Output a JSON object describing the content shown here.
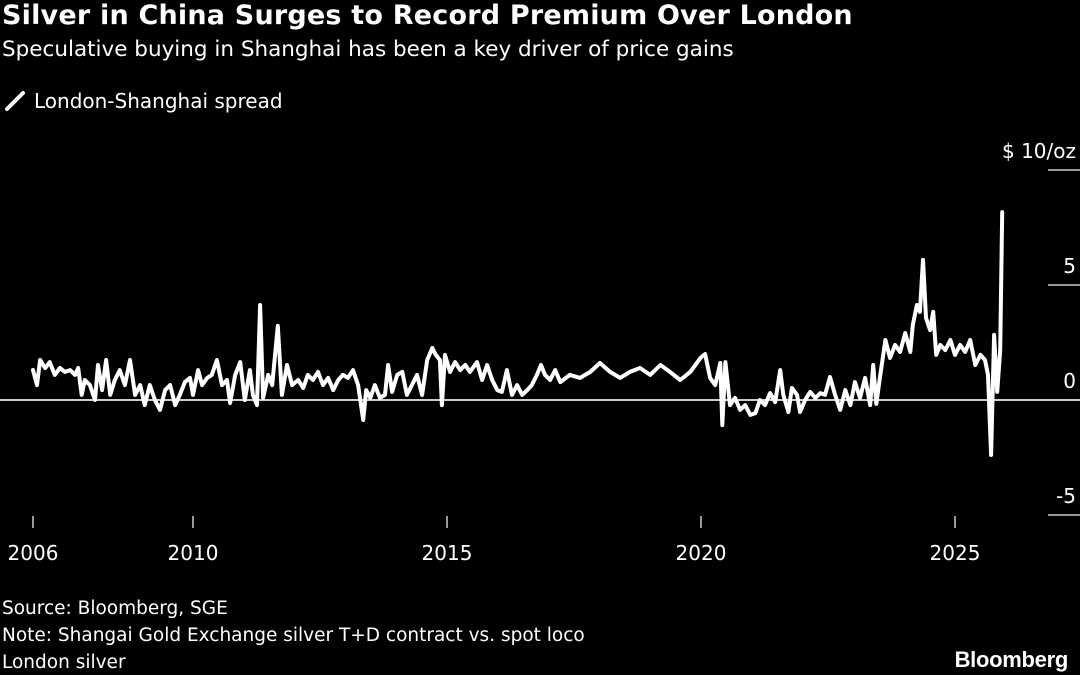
{
  "header": {
    "title": "Silver in China Surges to Record Premium Over London",
    "subtitle": "Speculative buying in Shanghai has been a key driver of price gains"
  },
  "footer": {
    "source": "Source: Bloomberg, SGE",
    "note_line1": "Note: Shangai Gold Exchange silver T+D contract vs. spot loco",
    "note_line2": "London silver",
    "logo": "Bloomberg"
  },
  "colors": {
    "background": "#000000",
    "line": "#ffffff",
    "zero_line": "#cccccc"
  },
  "chart_data": {
    "type": "line",
    "title": "Silver in China Surges to Record Premium Over London",
    "subtitle": "Speculative buying in Shanghai has been a key driver of price gains",
    "legend": {
      "placement": "top-left",
      "entries": [
        "London-Shanghai spread"
      ]
    },
    "ylabel_unit": "$ 10/oz",
    "y_ticks": [
      {
        "value": 10,
        "label": "$ 10/oz"
      },
      {
        "value": 5,
        "label": "5"
      },
      {
        "value": 0,
        "label": "0"
      },
      {
        "value": -5,
        "label": "-5"
      }
    ],
    "x_ticks": [
      {
        "value": 2006.85,
        "label": "2006"
      },
      {
        "value": 2010,
        "label": "2010"
      },
      {
        "value": 2015,
        "label": "2015"
      },
      {
        "value": 2020,
        "label": "2020"
      },
      {
        "value": 2025,
        "label": "2025"
      }
    ],
    "ylim": [
      -5,
      10
    ],
    "grid": false,
    "series": [
      {
        "name": "London-Shanghai spread",
        "x": [
          2006.85,
          2006.93,
          2006.99,
          2007.09,
          2007.18,
          2007.28,
          2007.38,
          2007.48,
          2007.58,
          2007.68,
          2007.74,
          2007.81,
          2007.87,
          2007.97,
          2008.07,
          2008.13,
          2008.21,
          2008.29,
          2008.37,
          2008.46,
          2008.56,
          2008.66,
          2008.76,
          2008.86,
          2008.96,
          2009.05,
          2009.15,
          2009.25,
          2009.35,
          2009.45,
          2009.55,
          2009.65,
          2009.74,
          2009.84,
          2009.94,
          2010.0,
          2010.1,
          2010.18,
          2010.28,
          2010.37,
          2010.47,
          2010.57,
          2010.67,
          2010.73,
          2010.83,
          2010.93,
          2011.02,
          2011.12,
          2011.18,
          2011.26,
          2011.32,
          2011.38,
          2011.48,
          2011.56,
          2011.67,
          2011.75,
          2011.85,
          2011.95,
          2012.07,
          2012.17,
          2012.26,
          2012.36,
          2012.46,
          2012.56,
          2012.66,
          2012.76,
          2012.86,
          2012.95,
          2013.05,
          2013.15,
          2013.25,
          2013.35,
          2013.41,
          2013.49,
          2013.58,
          2013.68,
          2013.78,
          2013.84,
          2013.92,
          2014.02,
          2014.12,
          2014.21,
          2014.31,
          2014.41,
          2014.51,
          2014.61,
          2014.71,
          2014.78,
          2014.86,
          2014.9,
          2014.96,
          2015.06,
          2015.16,
          2015.26,
          2015.36,
          2015.45,
          2015.59,
          2015.69,
          2015.79,
          2015.89,
          2015.99,
          2016.08,
          2016.18,
          2016.28,
          2016.38,
          2016.48,
          2016.58,
          2016.67,
          2016.77,
          2016.85,
          2016.93,
          2017.03,
          2017.13,
          2017.23,
          2017.42,
          2017.62,
          2017.82,
          2018.01,
          2018.21,
          2018.41,
          2018.6,
          2018.8,
          2019.0,
          2019.2,
          2019.39,
          2019.59,
          2019.79,
          2019.99,
          2020.08,
          2020.18,
          2020.28,
          2020.38,
          2020.42,
          2020.48,
          2020.57,
          2020.67,
          2020.77,
          2020.87,
          2020.97,
          2021.07,
          2021.16,
          2021.26,
          2021.36,
          2021.46,
          2021.56,
          2021.62,
          2021.72,
          2021.79,
          2021.89,
          2021.95,
          2022.05,
          2022.15,
          2022.25,
          2022.35,
          2022.44,
          2022.54,
          2022.64,
          2022.74,
          2022.84,
          2022.94,
          2023.03,
          2023.13,
          2023.23,
          2023.33,
          2023.39,
          2023.45,
          2023.53,
          2023.63,
          2023.72,
          2023.82,
          2023.92,
          2024.02,
          2024.12,
          2024.17,
          2024.25,
          2024.31,
          2024.37,
          2024.43,
          2024.51,
          2024.57,
          2024.63,
          2024.71,
          2024.81,
          2024.91,
          2025.0,
          2025.1,
          2025.2,
          2025.3,
          2025.4,
          2025.5,
          2025.59,
          2025.65,
          2025.71,
          2025.77,
          2025.83,
          2025.89,
          2025.93
        ],
        "y": [
          1.3,
          0.65,
          1.74,
          1.39,
          1.65,
          1.09,
          1.39,
          1.22,
          1.3,
          1.09,
          1.39,
          0.22,
          0.87,
          0.65,
          0,
          1.52,
          0.43,
          1.74,
          0.22,
          0.87,
          1.3,
          0.65,
          1.74,
          0.22,
          0.65,
          -0.22,
          0.65,
          0,
          -0.43,
          0.43,
          0.65,
          -0.22,
          0.22,
          0.78,
          0.96,
          0.22,
          1.3,
          0.65,
          0.96,
          1.09,
          1.74,
          0.65,
          0.87,
          -0.13,
          1.09,
          1.65,
          0,
          1.3,
          0.22,
          -0.22,
          4.13,
          0.09,
          1.09,
          0.65,
          3.22,
          0.22,
          1.52,
          0.65,
          0.87,
          0.52,
          1.09,
          0.87,
          1.22,
          0.65,
          0.96,
          0.43,
          0.87,
          1.09,
          0.96,
          1.3,
          0.65,
          -0.87,
          0.43,
          0.09,
          0.65,
          0.09,
          0.22,
          1.52,
          0.35,
          1.09,
          1.22,
          0.22,
          0.65,
          1.09,
          0.22,
          1.74,
          2.26,
          1.96,
          1.74,
          -0.22,
          1.96,
          1.22,
          1.65,
          1.3,
          1.52,
          1.22,
          1.65,
          0.87,
          1.52,
          0.87,
          0.43,
          0.35,
          1.3,
          0.22,
          0.65,
          0.22,
          0.43,
          0.65,
          1.09,
          1.52,
          1.09,
          0.87,
          1.3,
          0.78,
          1.09,
          0.96,
          1.22,
          1.61,
          1.22,
          0.96,
          1.22,
          1.39,
          1.09,
          1.52,
          1.22,
          0.87,
          1.22,
          1.83,
          2.0,
          0.96,
          0.65,
          1.61,
          -1.09,
          1.65,
          -0.22,
          0.09,
          -0.43,
          -0.22,
          -0.65,
          -0.57,
          0,
          -0.22,
          0.3,
          -0.09,
          1.3,
          0.22,
          -0.52,
          0.52,
          0.22,
          -0.52,
          0,
          0.35,
          0.09,
          0.3,
          0.22,
          1.0,
          0.22,
          -0.43,
          0.43,
          -0.22,
          0.78,
          0.09,
          0.96,
          -0.22,
          1.52,
          -0.17,
          1.09,
          2.61,
          1.83,
          2.39,
          2.09,
          2.91,
          2.09,
          3.26,
          4.13,
          3.83,
          6.09,
          3.57,
          3.04,
          3.83,
          1.96,
          2.39,
          2.17,
          2.61,
          1.96,
          2.39,
          2.09,
          2.61,
          1.52,
          1.96,
          1.74,
          1.09,
          -2.39,
          2.83,
          0.35,
          2.17,
          8.17
        ]
      }
    ]
  }
}
